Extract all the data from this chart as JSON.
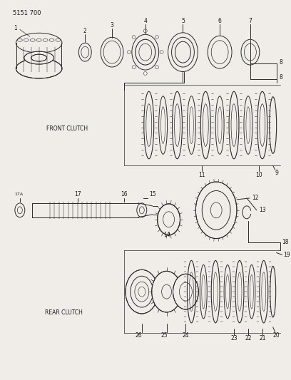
{
  "bg_color": "#f0ede8",
  "line_color": "#2a2a2a",
  "text_color": "#1a1a1a",
  "fig_width": 4.08,
  "fig_height": 5.33,
  "dpi": 100,
  "title": "5151 700",
  "front_clutch_label": "FRONT CLUTCH",
  "rear_clutch_label": "REAR CLUTCH",
  "lw": 0.7
}
